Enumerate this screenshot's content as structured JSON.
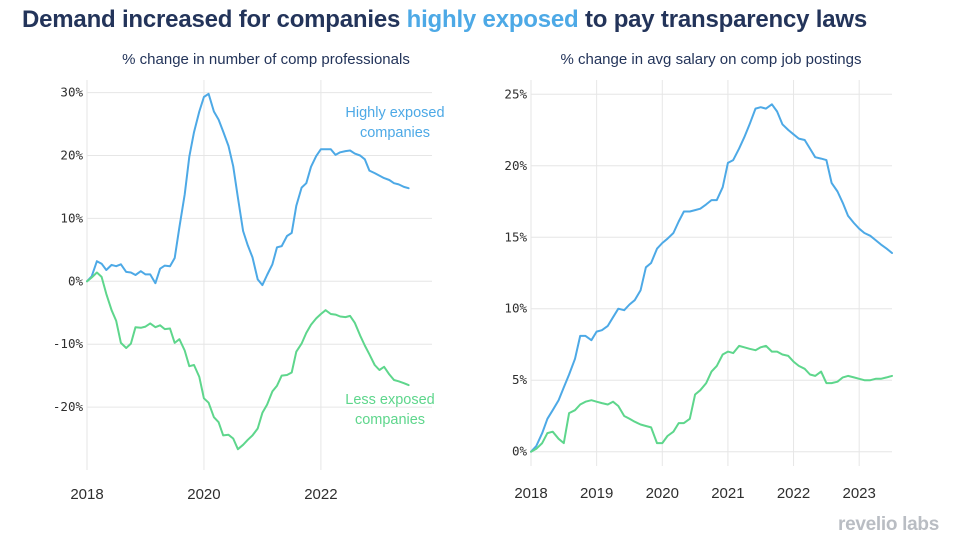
{
  "title": {
    "before": "Demand increased for companies ",
    "highlight": "highly exposed",
    "after": " to pay transparency laws"
  },
  "brand": "revelio labs",
  "colors": {
    "high": "#4da9e6",
    "low": "#5ed68c",
    "title": "#23345a",
    "highlight": "#4da9e6"
  },
  "chart_data": [
    {
      "type": "line",
      "title": "% change in number of comp professionals",
      "ylim": [
        -30,
        32
      ],
      "yticks": [
        -20,
        -10,
        0,
        10,
        20,
        30
      ],
      "ytick_labels": [
        "-20%",
        "-10%",
        "0%",
        "10%",
        "20%",
        "30%"
      ],
      "xlim": [
        2018,
        2023.9
      ],
      "xticks": [
        2018,
        2020,
        2022
      ],
      "xtick_labels": [
        "2018",
        "2020",
        "2022"
      ],
      "annotations": [
        {
          "lines": [
            "Highly exposed",
            "companies"
          ],
          "series": "Highly exposed companies"
        },
        {
          "lines": [
            "Less exposed",
            "companies"
          ],
          "series": "Less exposed companies"
        }
      ],
      "series": [
        {
          "name": "Highly exposed companies",
          "color": "#4da9e6",
          "x": [
            2018.0,
            2018.08,
            2018.17,
            2018.25,
            2018.33,
            2018.42,
            2018.5,
            2018.58,
            2018.67,
            2018.75,
            2018.83,
            2018.92,
            2019.0,
            2019.08,
            2019.17,
            2019.25,
            2019.33,
            2019.42,
            2019.5,
            2019.58,
            2019.67,
            2019.75,
            2019.83,
            2019.92,
            2020.0,
            2020.08,
            2020.17,
            2020.25,
            2020.33,
            2020.42,
            2020.5,
            2020.58,
            2020.67,
            2020.75,
            2020.83,
            2020.92,
            2021.0,
            2021.08,
            2021.17,
            2021.25,
            2021.33,
            2021.42,
            2021.5,
            2021.58,
            2021.67,
            2021.75,
            2021.83,
            2021.92,
            2022.0,
            2022.08,
            2022.17,
            2022.25,
            2022.33,
            2022.42,
            2022.5,
            2022.58,
            2022.67,
            2022.75,
            2022.83,
            2022.92,
            2023.0,
            2023.08,
            2023.17,
            2023.25,
            2023.33,
            2023.42,
            2023.5
          ],
          "values": [
            0,
            0.8,
            3.2,
            2.8,
            1.8,
            2.6,
            2.4,
            2.7,
            1.5,
            1.4,
            1.0,
            1.6,
            1.1,
            1.1,
            -0.3,
            2.0,
            2.5,
            2.4,
            3.7,
            8.6,
            13.8,
            19.8,
            23.7,
            27.0,
            29.3,
            29.8,
            27.0,
            25.7,
            23.8,
            21.5,
            18.3,
            13.3,
            8.0,
            5.7,
            3.8,
            0.3,
            -0.6,
            1.0,
            2.7,
            5.4,
            5.6,
            7.2,
            7.7,
            12.0,
            14.9,
            15.6,
            18.2,
            19.9,
            21.0,
            21.0,
            21.0,
            20.1,
            20.5,
            20.7,
            20.8,
            20.3,
            20.0,
            19.4,
            17.6,
            17.2,
            16.8,
            16.4,
            16.1,
            15.6,
            15.4,
            15.0,
            14.8
          ]
        },
        {
          "name": "Less exposed companies",
          "color": "#5ed68c",
          "x": [
            2018.0,
            2018.08,
            2018.17,
            2018.25,
            2018.33,
            2018.42,
            2018.5,
            2018.58,
            2018.67,
            2018.75,
            2018.83,
            2018.92,
            2019.0,
            2019.08,
            2019.17,
            2019.25,
            2019.33,
            2019.42,
            2019.5,
            2019.58,
            2019.67,
            2019.75,
            2019.83,
            2019.92,
            2020.0,
            2020.08,
            2020.17,
            2020.25,
            2020.33,
            2020.42,
            2020.5,
            2020.58,
            2020.67,
            2020.75,
            2020.83,
            2020.92,
            2021.0,
            2021.08,
            2021.17,
            2021.25,
            2021.33,
            2021.42,
            2021.5,
            2021.58,
            2021.67,
            2021.75,
            2021.83,
            2021.92,
            2022.0,
            2022.08,
            2022.17,
            2022.25,
            2022.33,
            2022.42,
            2022.5,
            2022.58,
            2022.67,
            2022.75,
            2022.83,
            2022.92,
            2023.0,
            2023.08,
            2023.17,
            2023.25,
            2023.33,
            2023.42,
            2023.5
          ],
          "values": [
            0,
            0.6,
            1.4,
            0.7,
            -2.0,
            -4.6,
            -6.3,
            -9.8,
            -10.6,
            -9.9,
            -7.3,
            -7.4,
            -7.2,
            -6.7,
            -7.3,
            -7.0,
            -7.6,
            -7.5,
            -9.8,
            -9.2,
            -11.0,
            -13.5,
            -13.3,
            -15.2,
            -18.6,
            -19.3,
            -21.6,
            -22.4,
            -24.5,
            -24.4,
            -25.0,
            -26.7,
            -26.0,
            -25.2,
            -24.5,
            -23.4,
            -20.9,
            -19.6,
            -17.5,
            -16.6,
            -15.0,
            -14.9,
            -14.5,
            -11.2,
            -9.9,
            -8.2,
            -6.9,
            -5.9,
            -5.2,
            -4.6,
            -5.2,
            -5.3,
            -5.6,
            -5.7,
            -5.5,
            -6.6,
            -8.6,
            -10.2,
            -11.6,
            -13.3,
            -14.1,
            -13.6,
            -14.8,
            -15.7,
            -15.9,
            -16.2,
            -16.5
          ]
        }
      ]
    },
    {
      "type": "line",
      "title": "% change in avg salary on comp job postings",
      "ylim": [
        -1,
        26
      ],
      "yticks": [
        0,
        5,
        10,
        15,
        20,
        25
      ],
      "ytick_labels": [
        "0%",
        "5%",
        "10%",
        "15%",
        "20%",
        "25%"
      ],
      "xlim": [
        2018,
        2023.5
      ],
      "xticks": [
        2018,
        2019,
        2020,
        2021,
        2022,
        2023
      ],
      "xtick_labels": [
        "2018",
        "2019",
        "2020",
        "2021",
        "2022",
        "2023"
      ],
      "series": [
        {
          "name": "Highly exposed companies",
          "color": "#4da9e6",
          "x": [
            2018.0,
            2018.08,
            2018.17,
            2018.25,
            2018.33,
            2018.42,
            2018.5,
            2018.58,
            2018.67,
            2018.75,
            2018.83,
            2018.92,
            2019.0,
            2019.08,
            2019.17,
            2019.25,
            2019.33,
            2019.42,
            2019.5,
            2019.58,
            2019.67,
            2019.75,
            2019.83,
            2019.92,
            2020.0,
            2020.08,
            2020.17,
            2020.25,
            2020.33,
            2020.42,
            2020.5,
            2020.58,
            2020.67,
            2020.75,
            2020.83,
            2020.92,
            2021.0,
            2021.08,
            2021.17,
            2021.25,
            2021.33,
            2021.42,
            2021.5,
            2021.58,
            2021.67,
            2021.75,
            2021.83,
            2021.92,
            2022.0,
            2022.08,
            2022.17,
            2022.25,
            2022.33,
            2022.42,
            2022.5,
            2022.58,
            2022.67,
            2022.75,
            2022.83,
            2022.92,
            2023.0,
            2023.08,
            2023.17,
            2023.25,
            2023.33,
            2023.42,
            2023.5
          ],
          "values": [
            0,
            0.4,
            1.3,
            2.3,
            2.9,
            3.6,
            4.5,
            5.4,
            6.5,
            8.1,
            8.1,
            7.8,
            8.4,
            8.5,
            8.8,
            9.4,
            10.0,
            9.9,
            10.3,
            10.6,
            11.3,
            12.9,
            13.2,
            14.2,
            14.6,
            14.9,
            15.3,
            16.1,
            16.8,
            16.8,
            16.9,
            17.0,
            17.3,
            17.6,
            17.6,
            18.5,
            20.2,
            20.4,
            21.2,
            22.0,
            22.9,
            24.0,
            24.1,
            24.0,
            24.3,
            23.8,
            22.9,
            22.5,
            22.2,
            21.9,
            21.8,
            21.2,
            20.6,
            20.5,
            20.4,
            18.8,
            18.2,
            17.4,
            16.5,
            16.0,
            15.6,
            15.3,
            15.1,
            14.8,
            14.5,
            14.2,
            13.9
          ]
        },
        {
          "name": "Less exposed companies",
          "color": "#5ed68c",
          "x": [
            2018.0,
            2018.08,
            2018.17,
            2018.25,
            2018.33,
            2018.42,
            2018.5,
            2018.58,
            2018.67,
            2018.75,
            2018.83,
            2018.92,
            2019.0,
            2019.08,
            2019.17,
            2019.25,
            2019.33,
            2019.42,
            2019.5,
            2019.58,
            2019.67,
            2019.75,
            2019.83,
            2019.92,
            2020.0,
            2020.08,
            2020.17,
            2020.25,
            2020.33,
            2020.42,
            2020.5,
            2020.58,
            2020.67,
            2020.75,
            2020.83,
            2020.92,
            2021.0,
            2021.08,
            2021.17,
            2021.25,
            2021.33,
            2021.42,
            2021.5,
            2021.58,
            2021.67,
            2021.75,
            2021.83,
            2021.92,
            2022.0,
            2022.08,
            2022.17,
            2022.25,
            2022.33,
            2022.42,
            2022.5,
            2022.58,
            2022.67,
            2022.75,
            2022.83,
            2022.92,
            2023.0,
            2023.08,
            2023.17,
            2023.25,
            2023.33,
            2023.42,
            2023.5
          ],
          "values": [
            0,
            0.2,
            0.6,
            1.3,
            1.4,
            0.9,
            0.6,
            2.7,
            2.9,
            3.3,
            3.5,
            3.6,
            3.5,
            3.4,
            3.3,
            3.5,
            3.2,
            2.5,
            2.3,
            2.1,
            1.9,
            1.8,
            1.7,
            0.6,
            0.6,
            1.1,
            1.4,
            2.0,
            2.0,
            2.3,
            4.0,
            4.3,
            4.8,
            5.6,
            6.0,
            6.8,
            7.0,
            6.9,
            7.4,
            7.3,
            7.2,
            7.1,
            7.3,
            7.4,
            7.0,
            7.0,
            6.8,
            6.7,
            6.3,
            6.0,
            5.8,
            5.4,
            5.3,
            5.6,
            4.8,
            4.8,
            4.9,
            5.2,
            5.3,
            5.2,
            5.1,
            5.0,
            5.0,
            5.1,
            5.1,
            5.2,
            5.3
          ]
        }
      ]
    }
  ]
}
